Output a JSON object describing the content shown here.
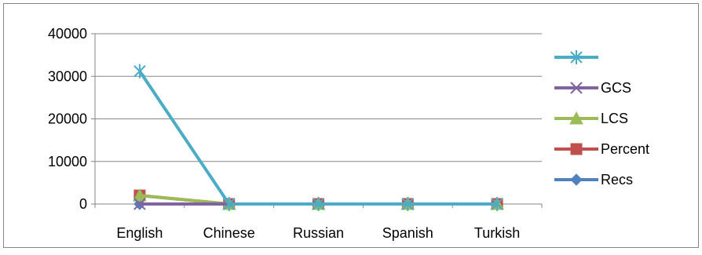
{
  "chart_data": {
    "type": "line",
    "categories": [
      "English",
      "Chinese",
      "Russian",
      "Spanish",
      "Turkish"
    ],
    "ylim": [
      0,
      40000
    ],
    "yticks": [
      0,
      10000,
      20000,
      30000,
      40000
    ],
    "grid": true,
    "legend_position": "right",
    "series": [
      {
        "name": "Recs",
        "color": "#4F81BD",
        "marker": "diamond",
        "values": [
          0,
          0,
          0,
          0,
          0
        ]
      },
      {
        "name": "Percent",
        "color": "#C0504D",
        "marker": "square",
        "values": [
          2000,
          0,
          0,
          0,
          0
        ]
      },
      {
        "name": "LCS",
        "color": "#9BBB59",
        "marker": "triangle",
        "values": [
          2000,
          0,
          0,
          0,
          0
        ]
      },
      {
        "name": "GCS",
        "color": "#8064A2",
        "marker": "x",
        "values": [
          0,
          0,
          0,
          0,
          0
        ]
      },
      {
        "name": "",
        "color": "#4BACC6",
        "marker": "star",
        "values": [
          31200,
          0,
          0,
          0,
          0
        ]
      }
    ]
  }
}
